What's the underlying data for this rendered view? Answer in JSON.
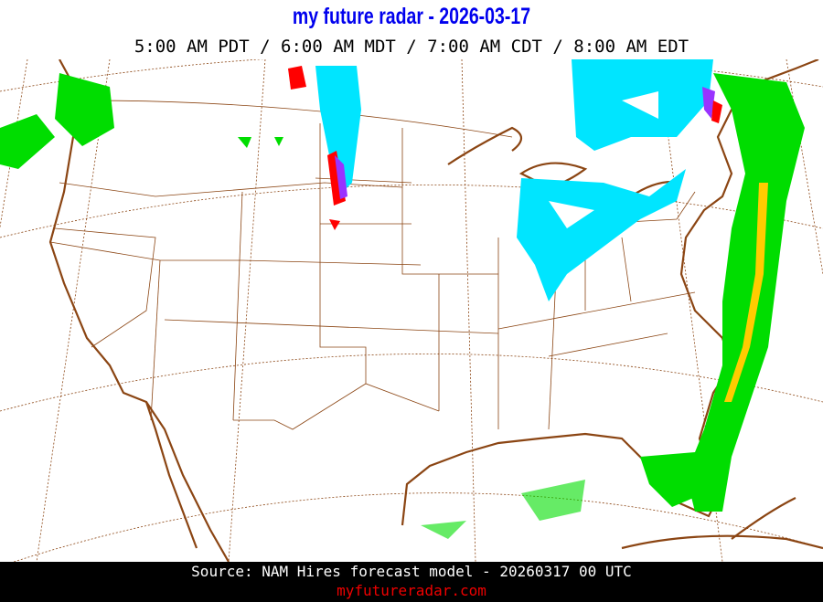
{
  "header": {
    "title": "my future radar - 2026-03-17",
    "times": "5:00 AM PDT /  6:00 AM MDT /  7:00 AM CDT /  8:00 AM EDT"
  },
  "footer": {
    "source": "Source: NAM Hires forecast model - 20260317 00 UTC",
    "site": "myfutureradar.com"
  },
  "map": {
    "region": "Continental United States",
    "colors": {
      "coast": "#8b4513",
      "state_lines": "#8b4513",
      "graticule": "#8b4513",
      "snow": "#00e5ff",
      "rain_light": "#00dd00",
      "rain_heavy": "#ffcc00",
      "mix": "#9933ff",
      "ice": "#ff0000"
    }
  }
}
